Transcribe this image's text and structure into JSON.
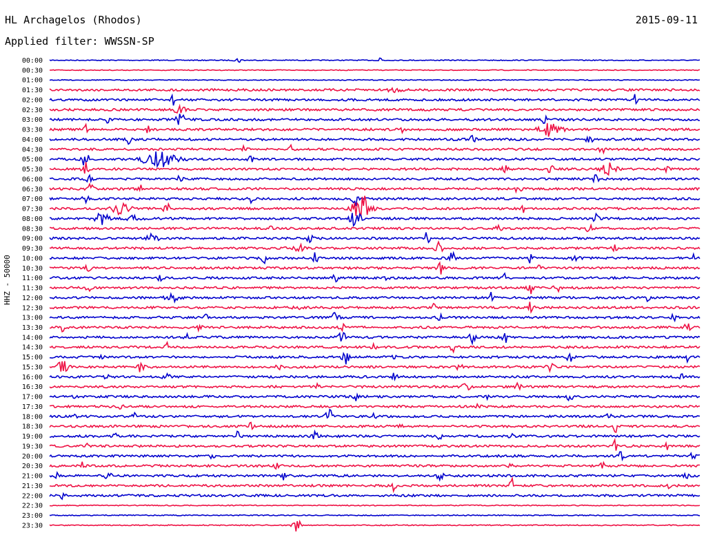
{
  "header": {
    "station": "HL Archagelos (Rhodos)",
    "date": "2015-09-11",
    "filter": "Applied filter: WWSSN-SP"
  },
  "chart_data": {
    "type": "line",
    "title": "HL Archagelos (Rhodos)",
    "subtitle": "Applied filter: WWSSN-SP",
    "ylabel": "HHZ - 50000",
    "xlabel": "",
    "date": "2015-09-11",
    "grid": false,
    "legend": "none",
    "trace_colors": [
      "#0000cc",
      "#ee1144"
    ],
    "rows": [
      {
        "label": "00:00",
        "color": "#0000cc",
        "events": [
          {
            "t": 0.51,
            "a": 14,
            "w": 0.004
          },
          {
            "t": 0.29,
            "a": 4,
            "w": 0.005
          }
        ]
      },
      {
        "label": "00:30",
        "color": "#ee1144",
        "events": []
      },
      {
        "label": "01:00",
        "color": "#0000cc",
        "events": []
      },
      {
        "label": "01:30",
        "color": "#ee1144",
        "events": [
          {
            "t": 0.53,
            "a": 3,
            "w": 0.01
          }
        ]
      },
      {
        "label": "02:00",
        "color": "#0000cc",
        "events": [
          {
            "t": 0.19,
            "a": 10,
            "w": 0.003
          },
          {
            "t": 0.9,
            "a": 7,
            "w": 0.003
          }
        ]
      },
      {
        "label": "02:30",
        "color": "#ee1144",
        "events": [
          {
            "t": 0.2,
            "a": 4,
            "w": 0.01
          }
        ]
      },
      {
        "label": "03:00",
        "color": "#0000cc",
        "events": [
          {
            "t": 0.2,
            "a": 12,
            "w": 0.006
          },
          {
            "t": 0.09,
            "a": 8,
            "w": 0.003
          },
          {
            "t": 0.76,
            "a": 7,
            "w": 0.004
          }
        ]
      },
      {
        "label": "03:30",
        "color": "#ee1144",
        "events": [
          {
            "t": 0.055,
            "a": 8,
            "w": 0.003
          },
          {
            "t": 0.77,
            "a": 9,
            "w": 0.015
          },
          {
            "t": 0.15,
            "a": 6,
            "w": 0.003
          },
          {
            "t": 0.54,
            "a": 6,
            "w": 0.003
          }
        ]
      },
      {
        "label": "04:00",
        "color": "#0000cc",
        "events": [
          {
            "t": 0.12,
            "a": 8,
            "w": 0.006
          },
          {
            "t": 0.83,
            "a": 8,
            "w": 0.004
          },
          {
            "t": 0.65,
            "a": 6,
            "w": 0.004
          }
        ]
      },
      {
        "label": "04:30",
        "color": "#ee1144",
        "events": [
          {
            "t": 0.37,
            "a": 10,
            "w": 0.002
          },
          {
            "t": 0.3,
            "a": 6,
            "w": 0.003
          },
          {
            "t": 0.85,
            "a": 6,
            "w": 0.004
          }
        ]
      },
      {
        "label": "05:00",
        "color": "#0000cc",
        "events": [
          {
            "t": 0.055,
            "a": 12,
            "w": 0.005
          },
          {
            "t": 0.17,
            "a": 12,
            "w": 0.025
          },
          {
            "t": 0.31,
            "a": 6,
            "w": 0.004
          }
        ]
      },
      {
        "label": "05:30",
        "color": "#ee1144",
        "events": [
          {
            "t": 0.055,
            "a": 10,
            "w": 0.005
          },
          {
            "t": 0.77,
            "a": 12,
            "w": 0.004
          },
          {
            "t": 0.86,
            "a": 10,
            "w": 0.01
          },
          {
            "t": 0.7,
            "a": 6,
            "w": 0.004
          },
          {
            "t": 0.95,
            "a": 7,
            "w": 0.004
          }
        ]
      },
      {
        "label": "06:00",
        "color": "#0000cc",
        "events": [
          {
            "t": 0.06,
            "a": 8,
            "w": 0.004
          },
          {
            "t": 0.2,
            "a": 6,
            "w": 0.004
          },
          {
            "t": 0.84,
            "a": 6,
            "w": 0.004
          }
        ]
      },
      {
        "label": "06:30",
        "color": "#ee1144",
        "events": [
          {
            "t": 0.065,
            "a": 10,
            "w": 0.005
          },
          {
            "t": 0.72,
            "a": 8,
            "w": 0.004
          },
          {
            "t": 0.14,
            "a": 5,
            "w": 0.004
          }
        ]
      },
      {
        "label": "07:00",
        "color": "#0000cc",
        "events": [
          {
            "t": 0.47,
            "a": 12,
            "w": 0.004
          },
          {
            "t": 0.31,
            "a": 9,
            "w": 0.003
          },
          {
            "t": 0.055,
            "a": 8,
            "w": 0.004
          }
        ]
      },
      {
        "label": "07:30",
        "color": "#ee1144",
        "events": [
          {
            "t": 0.48,
            "a": 22,
            "w": 0.012
          },
          {
            "t": 0.11,
            "a": 9,
            "w": 0.012
          },
          {
            "t": 0.18,
            "a": 12,
            "w": 0.004
          },
          {
            "t": 0.73,
            "a": 5,
            "w": 0.004
          }
        ]
      },
      {
        "label": "08:00",
        "color": "#0000cc",
        "events": [
          {
            "t": 0.47,
            "a": 16,
            "w": 0.008
          },
          {
            "t": 0.08,
            "a": 8,
            "w": 0.01
          },
          {
            "t": 0.13,
            "a": 7,
            "w": 0.01
          },
          {
            "t": 0.84,
            "a": 6,
            "w": 0.004
          }
        ]
      },
      {
        "label": "08:30",
        "color": "#ee1144",
        "events": [
          {
            "t": 0.34,
            "a": 6,
            "w": 0.003
          },
          {
            "t": 0.69,
            "a": 6,
            "w": 0.004
          },
          {
            "t": 0.83,
            "a": 6,
            "w": 0.004
          }
        ]
      },
      {
        "label": "09:00",
        "color": "#0000cc",
        "events": [
          {
            "t": 0.16,
            "a": 6,
            "w": 0.01
          },
          {
            "t": 0.4,
            "a": 6,
            "w": 0.004
          },
          {
            "t": 0.58,
            "a": 8,
            "w": 0.004
          }
        ]
      },
      {
        "label": "09:30",
        "color": "#ee1144",
        "events": [
          {
            "t": 0.38,
            "a": 8,
            "w": 0.01
          },
          {
            "t": 0.6,
            "a": 9,
            "w": 0.006
          },
          {
            "t": 0.87,
            "a": 6,
            "w": 0.004
          }
        ]
      },
      {
        "label": "10:00",
        "color": "#0000cc",
        "events": [
          {
            "t": 0.33,
            "a": 8,
            "w": 0.003
          },
          {
            "t": 0.41,
            "a": 10,
            "w": 0.004
          },
          {
            "t": 0.62,
            "a": 9,
            "w": 0.006
          },
          {
            "t": 0.74,
            "a": 7,
            "w": 0.004
          },
          {
            "t": 0.81,
            "a": 7,
            "w": 0.005
          },
          {
            "t": 0.99,
            "a": 6,
            "w": 0.003
          }
        ]
      },
      {
        "label": "10:30",
        "color": "#ee1144",
        "events": [
          {
            "t": 0.06,
            "a": 6,
            "w": 0.005
          },
          {
            "t": 0.6,
            "a": 10,
            "w": 0.004
          },
          {
            "t": 0.75,
            "a": 7,
            "w": 0.004
          }
        ]
      },
      {
        "label": "11:00",
        "color": "#0000cc",
        "events": [
          {
            "t": 0.7,
            "a": 12,
            "w": 0.003
          },
          {
            "t": 0.17,
            "a": 7,
            "w": 0.003
          },
          {
            "t": 0.44,
            "a": 7,
            "w": 0.004
          },
          {
            "t": 0.52,
            "a": 6,
            "w": 0.003
          }
        ]
      },
      {
        "label": "11:30",
        "color": "#ee1144",
        "events": [
          {
            "t": 0.74,
            "a": 10,
            "w": 0.004
          },
          {
            "t": 0.78,
            "a": 8,
            "w": 0.004
          },
          {
            "t": 0.06,
            "a": 5,
            "w": 0.004
          }
        ]
      },
      {
        "label": "12:00",
        "color": "#0000cc",
        "events": [
          {
            "t": 0.68,
            "a": 8,
            "w": 0.003
          },
          {
            "t": 0.92,
            "a": 8,
            "w": 0.003
          },
          {
            "t": 0.19,
            "a": 5,
            "w": 0.01
          }
        ]
      },
      {
        "label": "12:30",
        "color": "#ee1144",
        "events": [
          {
            "t": 0.74,
            "a": 8,
            "w": 0.004
          },
          {
            "t": 0.38,
            "a": 5,
            "w": 0.005
          },
          {
            "t": 0.59,
            "a": 5,
            "w": 0.004
          }
        ]
      },
      {
        "label": "13:00",
        "color": "#0000cc",
        "events": [
          {
            "t": 0.44,
            "a": 8,
            "w": 0.005
          },
          {
            "t": 0.96,
            "a": 8,
            "w": 0.003
          },
          {
            "t": 0.24,
            "a": 5,
            "w": 0.003
          },
          {
            "t": 0.6,
            "a": 6,
            "w": 0.003
          }
        ]
      },
      {
        "label": "13:30",
        "color": "#ee1144",
        "events": [
          {
            "t": 0.23,
            "a": 10,
            "w": 0.003
          },
          {
            "t": 0.98,
            "a": 10,
            "w": 0.004
          },
          {
            "t": 0.45,
            "a": 7,
            "w": 0.004
          },
          {
            "t": 0.02,
            "a": 5,
            "w": 0.004
          }
        ]
      },
      {
        "label": "14:00",
        "color": "#0000cc",
        "events": [
          {
            "t": 0.45,
            "a": 8,
            "w": 0.005
          },
          {
            "t": 0.65,
            "a": 8,
            "w": 0.004
          },
          {
            "t": 0.7,
            "a": 8,
            "w": 0.004
          },
          {
            "t": 0.21,
            "a": 5,
            "w": 0.003
          }
        ]
      },
      {
        "label": "14:30",
        "color": "#ee1144",
        "events": [
          {
            "t": 0.18,
            "a": 6,
            "w": 0.003
          },
          {
            "t": 0.5,
            "a": 6,
            "w": 0.004
          },
          {
            "t": 0.62,
            "a": 6,
            "w": 0.004
          }
        ]
      },
      {
        "label": "15:00",
        "color": "#0000cc",
        "events": [
          {
            "t": 0.455,
            "a": 12,
            "w": 0.005
          },
          {
            "t": 0.8,
            "a": 10,
            "w": 0.004
          },
          {
            "t": 0.98,
            "a": 10,
            "w": 0.003
          },
          {
            "t": 0.08,
            "a": 6,
            "w": 0.003
          },
          {
            "t": 0.53,
            "a": 6,
            "w": 0.004
          }
        ]
      },
      {
        "label": "15:30",
        "color": "#ee1144",
        "events": [
          {
            "t": 0.02,
            "a": 8,
            "w": 0.008
          },
          {
            "t": 0.14,
            "a": 7,
            "w": 0.005
          },
          {
            "t": 0.35,
            "a": 6,
            "w": 0.004
          },
          {
            "t": 0.63,
            "a": 6,
            "w": 0.004
          },
          {
            "t": 0.77,
            "a": 6,
            "w": 0.005
          }
        ]
      },
      {
        "label": "16:00",
        "color": "#0000cc",
        "events": [
          {
            "t": 0.09,
            "a": 6,
            "w": 0.005
          },
          {
            "t": 0.18,
            "a": 6,
            "w": 0.005
          },
          {
            "t": 0.53,
            "a": 5,
            "w": 0.004
          },
          {
            "t": 0.97,
            "a": 5,
            "w": 0.004
          }
        ]
      },
      {
        "label": "16:30",
        "color": "#ee1144",
        "events": [
          {
            "t": 0.64,
            "a": 7,
            "w": 0.006
          },
          {
            "t": 0.72,
            "a": 6,
            "w": 0.004
          },
          {
            "t": 0.41,
            "a": 4,
            "w": 0.004
          }
        ]
      },
      {
        "label": "17:00",
        "color": "#0000cc",
        "events": [
          {
            "t": 0.035,
            "a": 8,
            "w": 0.003
          },
          {
            "t": 0.67,
            "a": 9,
            "w": 0.004
          },
          {
            "t": 0.8,
            "a": 7,
            "w": 0.004
          },
          {
            "t": 0.47,
            "a": 6,
            "w": 0.003
          }
        ]
      },
      {
        "label": "17:30",
        "color": "#ee1144",
        "events": [
          {
            "t": 0.66,
            "a": 5,
            "w": 0.004
          },
          {
            "t": 0.11,
            "a": 4,
            "w": 0.004
          }
        ]
      },
      {
        "label": "18:00",
        "color": "#0000cc",
        "events": [
          {
            "t": 0.43,
            "a": 9,
            "w": 0.006
          },
          {
            "t": 0.5,
            "a": 6,
            "w": 0.003
          },
          {
            "t": 0.86,
            "a": 6,
            "w": 0.004
          },
          {
            "t": 0.13,
            "a": 5,
            "w": 0.004
          },
          {
            "t": 0.04,
            "a": 5,
            "w": 0.003
          }
        ]
      },
      {
        "label": "18:30",
        "color": "#ee1144",
        "events": [
          {
            "t": 0.87,
            "a": 9,
            "w": 0.003
          },
          {
            "t": 0.31,
            "a": 5,
            "w": 0.004
          },
          {
            "t": 0.54,
            "a": 4,
            "w": 0.004
          }
        ]
      },
      {
        "label": "19:00",
        "color": "#0000cc",
        "events": [
          {
            "t": 0.1,
            "a": 8,
            "w": 0.003
          },
          {
            "t": 0.29,
            "a": 10,
            "w": 0.003
          },
          {
            "t": 0.41,
            "a": 8,
            "w": 0.004
          },
          {
            "t": 0.6,
            "a": 8,
            "w": 0.003
          },
          {
            "t": 0.71,
            "a": 7,
            "w": 0.003
          }
        ]
      },
      {
        "label": "19:30",
        "color": "#ee1144",
        "events": [
          {
            "t": 0.87,
            "a": 10,
            "w": 0.003
          },
          {
            "t": 0.06,
            "a": 5,
            "w": 0.003
          },
          {
            "t": 0.95,
            "a": 5,
            "w": 0.003
          }
        ]
      },
      {
        "label": "20:00",
        "color": "#0000cc",
        "events": [
          {
            "t": 0.99,
            "a": 12,
            "w": 0.003
          },
          {
            "t": 0.88,
            "a": 9,
            "w": 0.004
          },
          {
            "t": 0.25,
            "a": 5,
            "w": 0.003
          }
        ]
      },
      {
        "label": "20:30",
        "color": "#ee1144",
        "events": [
          {
            "t": 0.05,
            "a": 8,
            "w": 0.003
          },
          {
            "t": 0.85,
            "a": 6,
            "w": 0.004
          },
          {
            "t": 0.35,
            "a": 5,
            "w": 0.004
          },
          {
            "t": 0.71,
            "a": 5,
            "w": 0.003
          }
        ]
      },
      {
        "label": "21:00",
        "color": "#0000cc",
        "events": [
          {
            "t": 0.01,
            "a": 8,
            "w": 0.003
          },
          {
            "t": 0.09,
            "a": 6,
            "w": 0.005
          },
          {
            "t": 0.6,
            "a": 6,
            "w": 0.005
          },
          {
            "t": 0.36,
            "a": 5,
            "w": 0.003
          },
          {
            "t": 0.98,
            "a": 5,
            "w": 0.004
          }
        ]
      },
      {
        "label": "21:30",
        "color": "#ee1144",
        "events": [
          {
            "t": 0.71,
            "a": 12,
            "w": 0.003
          },
          {
            "t": 0.53,
            "a": 8,
            "w": 0.003
          },
          {
            "t": 0.95,
            "a": 10,
            "w": 0.003
          }
        ]
      },
      {
        "label": "22:00",
        "color": "#0000cc",
        "events": [
          {
            "t": 0.02,
            "a": 8,
            "w": 0.003
          }
        ]
      },
      {
        "label": "22:30",
        "color": "#ee1144",
        "events": []
      },
      {
        "label": "23:00",
        "color": "#0000cc",
        "events": []
      },
      {
        "label": "23:30",
        "color": "#ee1144",
        "events": [
          {
            "t": 0.38,
            "a": 10,
            "w": 0.006
          }
        ]
      }
    ]
  }
}
